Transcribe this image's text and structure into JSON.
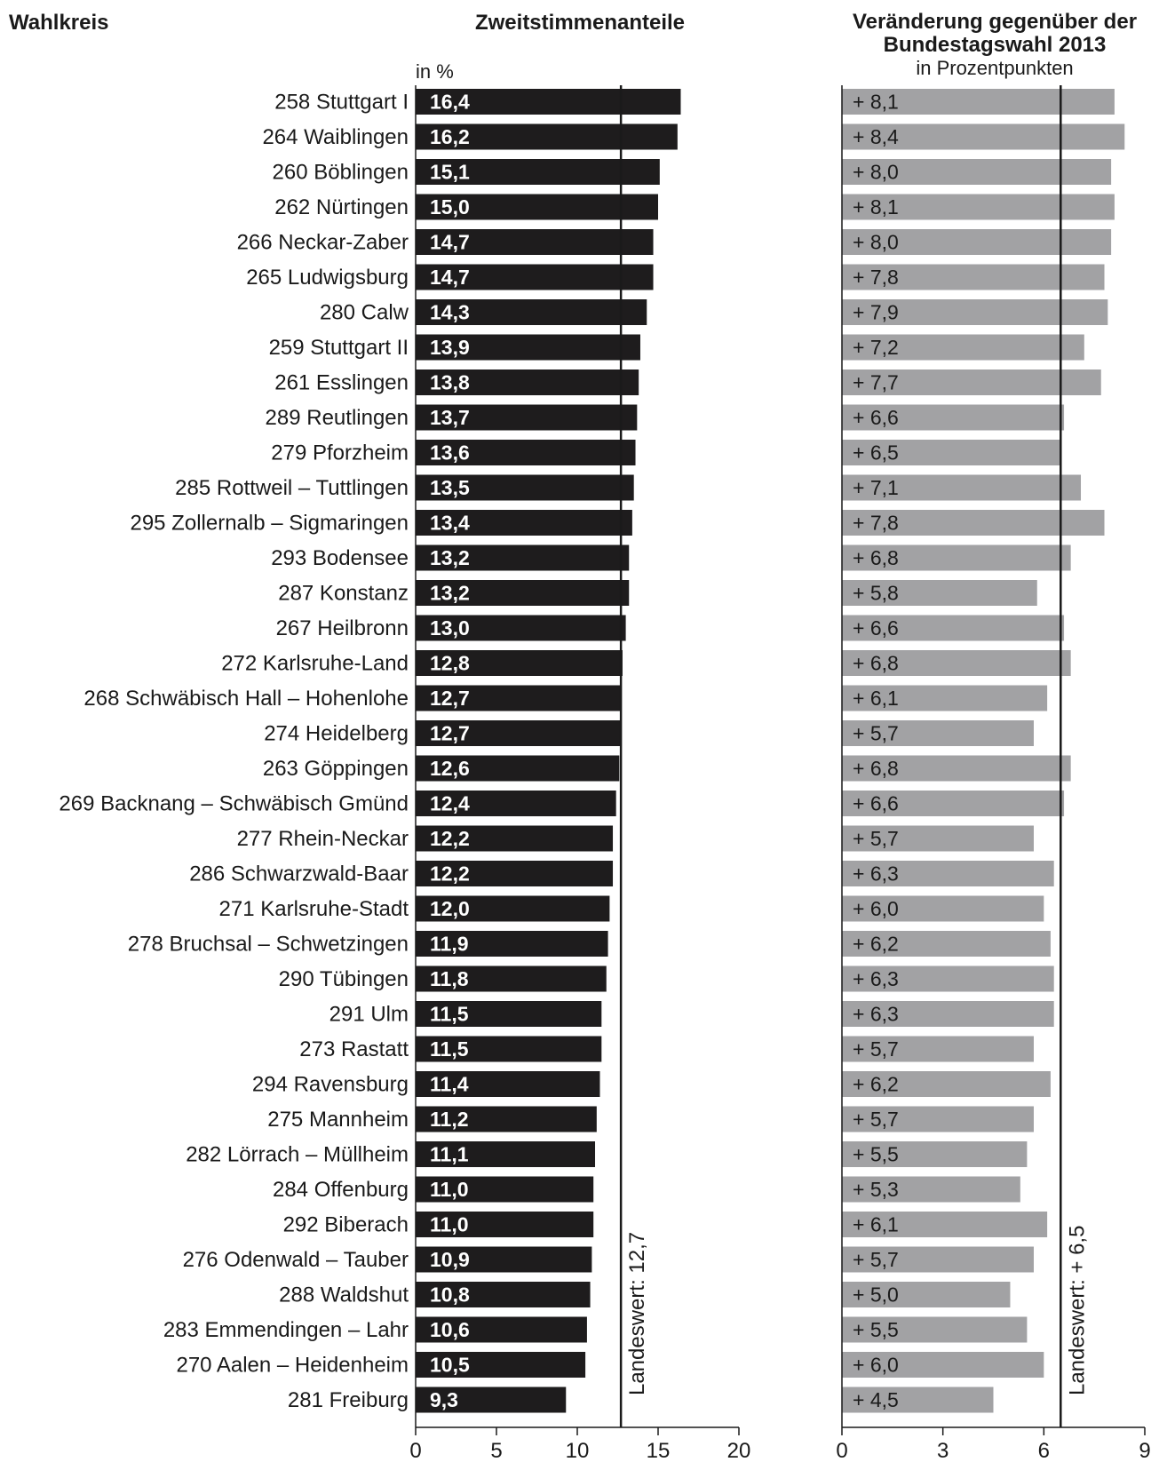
{
  "headers": {
    "wahlkreis": "Wahlkreis",
    "zweitstimmen": "Zweitstimmenanteile",
    "change_title_1": "Veränderung gegenüber der",
    "change_title_2": "Bundestagswahl 2013",
    "change_unit": "in Prozentpunkten",
    "left_unit": "in %"
  },
  "colors": {
    "share_bar": "#1e1c1d",
    "change_bar": "#a2a2a4",
    "text": "#1a1a1a"
  },
  "chart_data": [
    {
      "type": "bar",
      "orientation": "horizontal",
      "title": "Zweitstimmenanteile",
      "unit": "in %",
      "xlim": [
        0,
        20
      ],
      "xticks": [
        0,
        5,
        10,
        15,
        20
      ],
      "grid": false,
      "reference_line": {
        "value": 12.7,
        "label": "Landeswert: 12,7"
      },
      "categories": [
        "258 Stuttgart I",
        "264 Waiblingen",
        "260 Böblingen",
        "262 Nürtingen",
        "266 Neckar-Zaber",
        "265 Ludwigsburg",
        "280 Calw",
        "259 Stuttgart II",
        "261 Esslingen",
        "289 Reutlingen",
        "279 Pforzheim",
        "285 Rottweil – Tuttlingen",
        "295 Zollernalb – Sigmaringen",
        "293 Bodensee",
        "287 Konstanz",
        "267 Heilbronn",
        "272 Karlsruhe-Land",
        "268 Schwäbisch Hall – Hohenlohe",
        "274 Heidelberg",
        "263 Göppingen",
        "269 Backnang – Schwäbisch Gmünd",
        "277 Rhein-Neckar",
        "286 Schwarzwald-Baar",
        "271 Karlsruhe-Stadt",
        "278 Bruchsal – Schwetzingen",
        "290 Tübingen",
        "291 Ulm",
        "273 Rastatt",
        "294 Ravensburg",
        "275 Mannheim",
        "282 Lörrach – Müllheim",
        "284 Offenburg",
        "292 Biberach",
        "276 Odenwald – Tauber",
        "288 Waldshut",
        "283 Emmendingen – Lahr",
        "270 Aalen – Heidenheim",
        "281 Freiburg"
      ],
      "values": [
        16.4,
        16.2,
        15.1,
        15.0,
        14.7,
        14.7,
        14.3,
        13.9,
        13.8,
        13.7,
        13.6,
        13.5,
        13.4,
        13.2,
        13.2,
        13.0,
        12.8,
        12.7,
        12.7,
        12.6,
        12.4,
        12.2,
        12.2,
        12.0,
        11.9,
        11.8,
        11.5,
        11.5,
        11.4,
        11.2,
        11.1,
        11.0,
        11.0,
        10.9,
        10.8,
        10.6,
        10.5,
        9.3
      ],
      "value_labels": [
        "16,4",
        "16,2",
        "15,1",
        "15,0",
        "14,7",
        "14,7",
        "14,3",
        "13,9",
        "13,8",
        "13,7",
        "13,6",
        "13,5",
        "13,4",
        "13,2",
        "13,2",
        "13,0",
        "12,8",
        "12,7",
        "12,7",
        "12,6",
        "12,4",
        "12,2",
        "12,2",
        "12,0",
        "11,9",
        "11,8",
        "11,5",
        "11,5",
        "11,4",
        "11,2",
        "11,1",
        "11,0",
        "11,0",
        "10,9",
        "10,8",
        "10,6",
        "10,5",
        "9,3"
      ]
    },
    {
      "type": "bar",
      "orientation": "horizontal",
      "title": "Veränderung gegenüber der Bundestagswahl 2013",
      "unit": "in Prozentpunkten",
      "xlim": [
        0,
        9
      ],
      "xticks": [
        0,
        3,
        6,
        9
      ],
      "grid": false,
      "reference_line": {
        "value": 6.5,
        "label": "Landeswert: + 6,5"
      },
      "values": [
        8.1,
        8.4,
        8.0,
        8.1,
        8.0,
        7.8,
        7.9,
        7.2,
        7.7,
        6.6,
        6.5,
        7.1,
        7.8,
        6.8,
        5.8,
        6.6,
        6.8,
        6.1,
        5.7,
        6.8,
        6.6,
        5.7,
        6.3,
        6.0,
        6.2,
        6.3,
        6.3,
        5.7,
        6.2,
        5.7,
        5.5,
        5.3,
        6.1,
        5.7,
        5.0,
        5.5,
        6.0,
        4.5
      ],
      "value_labels": [
        "+ 8,1",
        "+ 8,4",
        "+ 8,0",
        "+ 8,1",
        "+ 8,0",
        "+ 7,8",
        "+ 7,9",
        "+ 7,2",
        "+ 7,7",
        "+ 6,6",
        "+ 6,5",
        "+ 7,1",
        "+ 7,8",
        "+ 6,8",
        "+ 5,8",
        "+ 6,6",
        "+ 6,8",
        "+ 6,1",
        "+ 5,7",
        "+ 6,8",
        "+ 6,6",
        "+ 5,7",
        "+ 6,3",
        "+ 6,0",
        "+ 6,2",
        "+ 6,3",
        "+ 6,3",
        "+ 5,7",
        "+ 6,2",
        "+ 5,7",
        "+ 5,5",
        "+ 5,3",
        "+ 6,1",
        "+ 5,7",
        "+ 5,0",
        "+ 5,5",
        "+ 6,0",
        "+ 4,5"
      ]
    }
  ]
}
